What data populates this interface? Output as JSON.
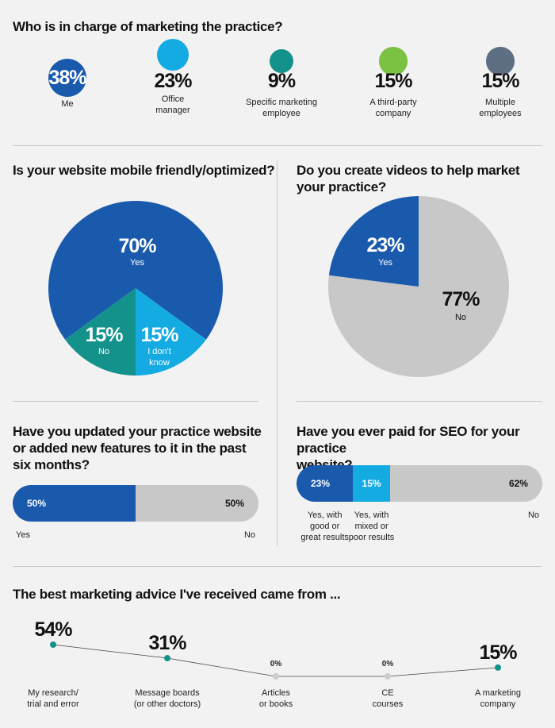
{
  "sections": {
    "charge": {
      "title": "Who is in charge of marketing the practice?",
      "items": [
        {
          "value": "38%",
          "label": "Me",
          "color": "#1a5aad"
        },
        {
          "value": "23%",
          "label": "Office\nmanager",
          "color": "#14abe3"
        },
        {
          "value": "9%",
          "label": "Specific marketing\nemployee",
          "color": "#13928b"
        },
        {
          "value": "15%",
          "label": "A third-party\ncompany",
          "color": "#7cc242"
        },
        {
          "value": "15%",
          "label": "Multiple\nemployees",
          "color": "#5f6f83"
        }
      ]
    },
    "mobile": {
      "title": "Is your website mobile friendly/optimized?",
      "slices": [
        {
          "value": "70%",
          "label": "Yes",
          "color": "#1a5aad"
        },
        {
          "value": "15%",
          "label": "No",
          "color": "#13928b"
        },
        {
          "value": "15%",
          "label": "I don't\nknow",
          "color": "#14abe3"
        }
      ]
    },
    "videos": {
      "title": "Do you create videos to help market\nyour practice?",
      "slices": [
        {
          "value": "23%",
          "label": "Yes",
          "color": "#1a5aad"
        },
        {
          "value": "77%",
          "label": "No",
          "color": "#c8c8c8"
        }
      ]
    },
    "updated": {
      "title": "Have you updated your practice website\nor added new features to it in the past\nsix months?",
      "segments": [
        {
          "value": "50%",
          "label": "Yes",
          "color": "#1a5aad"
        },
        {
          "value": "50%",
          "label": "No",
          "color": "#c8c8c8"
        }
      ]
    },
    "seo": {
      "title": "Have you ever paid for SEO for your practice\nwebsite?",
      "segments": [
        {
          "value": "23%",
          "label": "Yes, with\ngood or\ngreat results",
          "color": "#1a5aad"
        },
        {
          "value": "15%",
          "label": "Yes, with\nmixed or\npoor results",
          "color": "#14abe3"
        },
        {
          "value": "62%",
          "label": "No",
          "color": "#c8c8c8"
        }
      ]
    },
    "advice": {
      "title": "The best marketing advice I've received came from ..."
    }
  },
  "chart_data": [
    {
      "type": "bubble",
      "title": "Who is in charge of marketing the practice?",
      "categories": [
        "Me",
        "Office manager",
        "Specific marketing employee",
        "A third-party company",
        "Multiple employees"
      ],
      "values": [
        38,
        23,
        9,
        15,
        15
      ]
    },
    {
      "type": "pie",
      "title": "Is your website mobile friendly/optimized?",
      "categories": [
        "Yes",
        "No",
        "I don't know"
      ],
      "values": [
        70,
        15,
        15
      ]
    },
    {
      "type": "pie",
      "title": "Do you create videos to help market your practice?",
      "categories": [
        "Yes",
        "No"
      ],
      "values": [
        23,
        77
      ]
    },
    {
      "type": "bar",
      "title": "Have you updated your practice website or added new features to it in the past six months?",
      "categories": [
        "Yes",
        "No"
      ],
      "values": [
        50,
        50
      ]
    },
    {
      "type": "bar",
      "title": "Have you ever paid for SEO for your practice website?",
      "categories": [
        "Yes, with good or great results",
        "Yes, with mixed or poor results",
        "No"
      ],
      "values": [
        23,
        15,
        62
      ]
    },
    {
      "type": "line",
      "title": "The best marketing advice I've received came from ...",
      "categories": [
        "My research/\ntrial and error",
        "Message boards\n(or other doctors)",
        "Articles\nor books",
        "CE\ncourses",
        "A marketing\ncompany"
      ],
      "values": [
        54,
        31,
        0,
        0,
        15
      ],
      "labels": [
        "54%",
        "31%",
        "0%",
        "0%",
        "15%"
      ],
      "ylim": [
        0,
        54
      ],
      "line_color": "#444444",
      "point_color": "#13928b",
      "zero_point_color": "#cccccc"
    }
  ]
}
